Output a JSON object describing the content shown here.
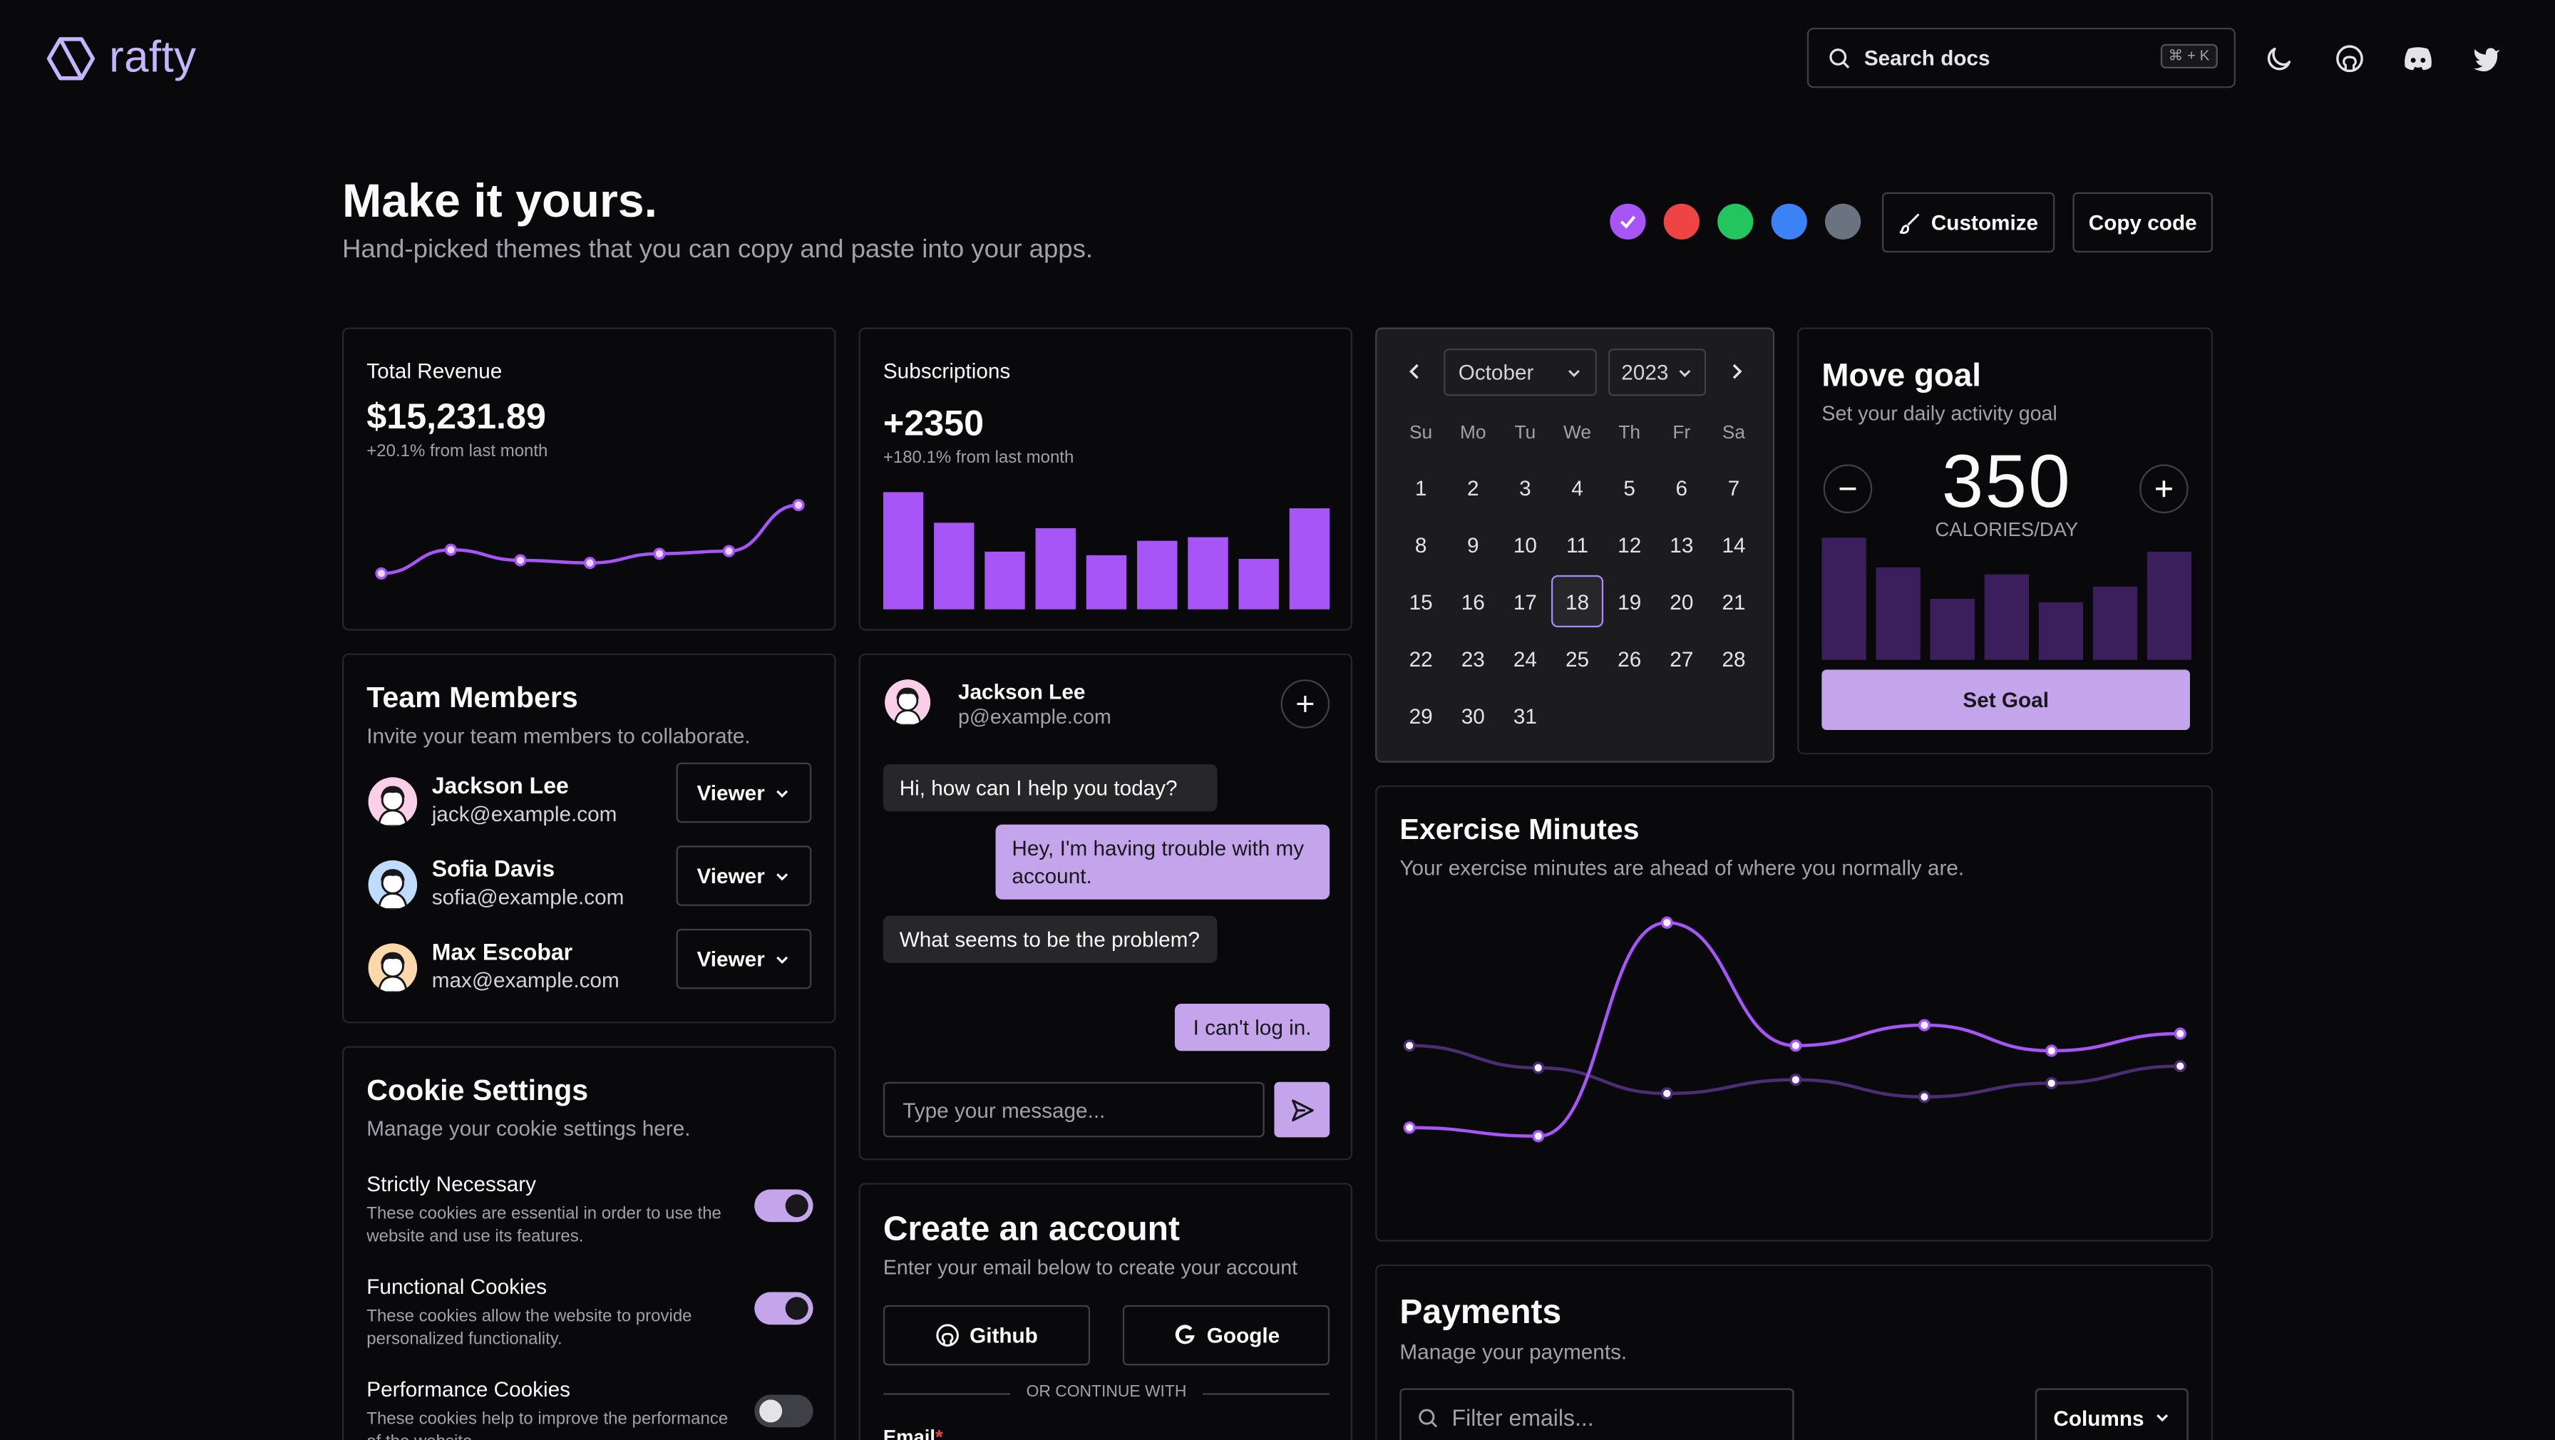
{
  "header": {
    "brand": "rafty",
    "search_placeholder": "Search docs",
    "shortcut": "⌘ + K"
  },
  "hero": {
    "title": "Make it yours.",
    "subtitle": "Hand-picked themes that you can copy and paste into your apps.",
    "theme_colors": [
      "#a855f7",
      "#ef4444",
      "#22c55e",
      "#3b82f6",
      "#6b7280"
    ],
    "customize_label": "Customize",
    "copy_label": "Copy code"
  },
  "revenue": {
    "title": "Total Revenue",
    "value": "$15,231.89",
    "delta": "+20.1% from last month",
    "chart_data": {
      "type": "line",
      "values": [
        10,
        28,
        20,
        18,
        25,
        27,
        62
      ]
    }
  },
  "subscriptions": {
    "title": "Subscriptions",
    "value": "+2350",
    "delta": "+180.1% from last month",
    "chart_data": {
      "type": "bar",
      "values": [
        65,
        48,
        32,
        45,
        30,
        38,
        40,
        28,
        56
      ]
    }
  },
  "calendar": {
    "month": "October",
    "year": "2023",
    "weekdays": [
      "Su",
      "Mo",
      "Tu",
      "We",
      "Th",
      "Fr",
      "Sa"
    ],
    "days": [
      "1",
      "2",
      "3",
      "4",
      "5",
      "6",
      "7",
      "8",
      "9",
      "10",
      "11",
      "12",
      "13",
      "14",
      "15",
      "16",
      "17",
      "18",
      "19",
      "20",
      "21",
      "22",
      "23",
      "24",
      "25",
      "26",
      "27",
      "28",
      "29",
      "30",
      "31"
    ],
    "selected": "18"
  },
  "move_goal": {
    "title": "Move goal",
    "subtitle": "Set your daily activity goal",
    "value": "350",
    "unit": "CALORIES/DAY",
    "button": "Set Goal",
    "chart_data": {
      "type": "bar",
      "values": [
        70,
        53,
        35,
        49,
        33,
        42,
        62
      ]
    }
  },
  "team": {
    "title": "Team Members",
    "subtitle": "Invite your team members to collaborate.",
    "members": [
      {
        "name": "Jackson Lee",
        "email": "jack@example.com",
        "role": "Viewer"
      },
      {
        "name": "Sofia Davis",
        "email": "sofia@example.com",
        "role": "Viewer"
      },
      {
        "name": "Max Escobar",
        "email": "max@example.com",
        "role": "Viewer"
      }
    ]
  },
  "chat": {
    "name": "Jackson Lee",
    "email": "p@example.com",
    "messages": [
      {
        "from": "agent",
        "text": "Hi, how can I help you today?"
      },
      {
        "from": "user",
        "text": "Hey, I'm having trouble with my account."
      },
      {
        "from": "agent",
        "text": "What seems to be the problem?"
      },
      {
        "from": "user",
        "text": "I can't log in."
      }
    ],
    "input_placeholder": "Type your message..."
  },
  "exercise": {
    "title": "Exercise Minutes",
    "subtitle": "Your exercise minutes are ahead of where you normally are.",
    "chart_data": {
      "type": "line",
      "series": [
        {
          "values": [
            20,
            15,
            140,
            68,
            80,
            65,
            75
          ]
        },
        {
          "values": [
            68,
            55,
            40,
            48,
            38,
            46,
            56
          ]
        }
      ]
    }
  },
  "cookies": {
    "title": "Cookie Settings",
    "subtitle": "Manage your cookie settings here.",
    "items": [
      {
        "label": "Strictly Necessary",
        "desc": "These cookies are essential in order to use the website and use its features.",
        "on": true
      },
      {
        "label": "Functional Cookies",
        "desc": "These cookies allow the website to provide personalized functionality.",
        "on": true
      },
      {
        "label": "Performance Cookies",
        "desc": "These cookies help to improve the performance of the website.",
        "on": false
      }
    ]
  },
  "account": {
    "title": "Create an account",
    "subtitle": "Enter your email below to create your account",
    "github": "Github",
    "google": "Google",
    "divider": "OR CONTINUE WITH",
    "email_label": "Email"
  },
  "payments": {
    "title": "Payments",
    "subtitle": "Manage your payments.",
    "filter_placeholder": "Filter emails...",
    "columns_label": "Columns"
  }
}
